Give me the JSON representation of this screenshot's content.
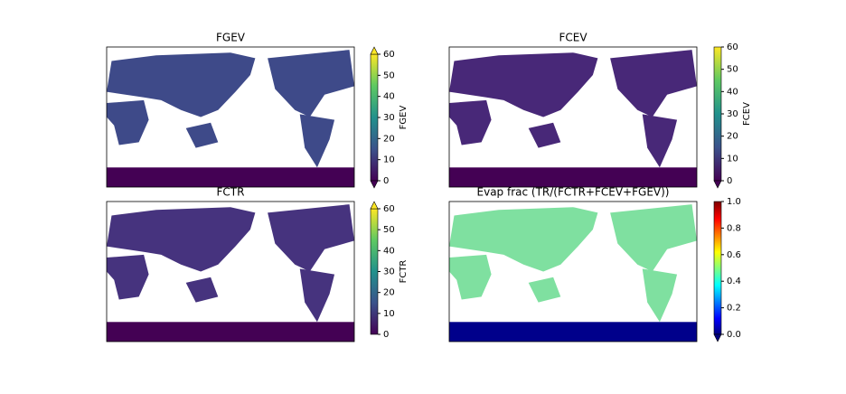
{
  "chart_data": [
    {
      "type": "heatmap",
      "title": "FGEV",
      "colorbar_label": "FGEV",
      "colormap": "viridis",
      "extend": "both",
      "zlim": [
        0,
        60
      ],
      "zticks": [
        0,
        10,
        20,
        30,
        40,
        50,
        60
      ]
    },
    {
      "type": "heatmap",
      "title": "FCEV",
      "colorbar_label": "FCEV",
      "colormap": "viridis",
      "extend": "min",
      "zlim": [
        0,
        60
      ],
      "zticks": [
        0,
        10,
        20,
        30,
        40,
        50,
        60
      ]
    },
    {
      "type": "heatmap",
      "title": "FCTR",
      "colorbar_label": "FCTR",
      "colormap": "viridis",
      "extend": "max",
      "zlim": [
        0,
        60
      ],
      "zticks": [
        0,
        10,
        20,
        30,
        40,
        50,
        60
      ]
    },
    {
      "type": "heatmap",
      "title": "Evap frac (TR/(FCTR+FCEV+FGEV))",
      "colormap": "jet",
      "extend": "min",
      "zlim": [
        0,
        1
      ],
      "zticks": [
        {
          "value": 0,
          "label": "0.0"
        },
        0.2,
        0.4,
        0.6,
        0.8,
        {
          "value": 1,
          "label": "1.0"
        }
      ]
    }
  ]
}
